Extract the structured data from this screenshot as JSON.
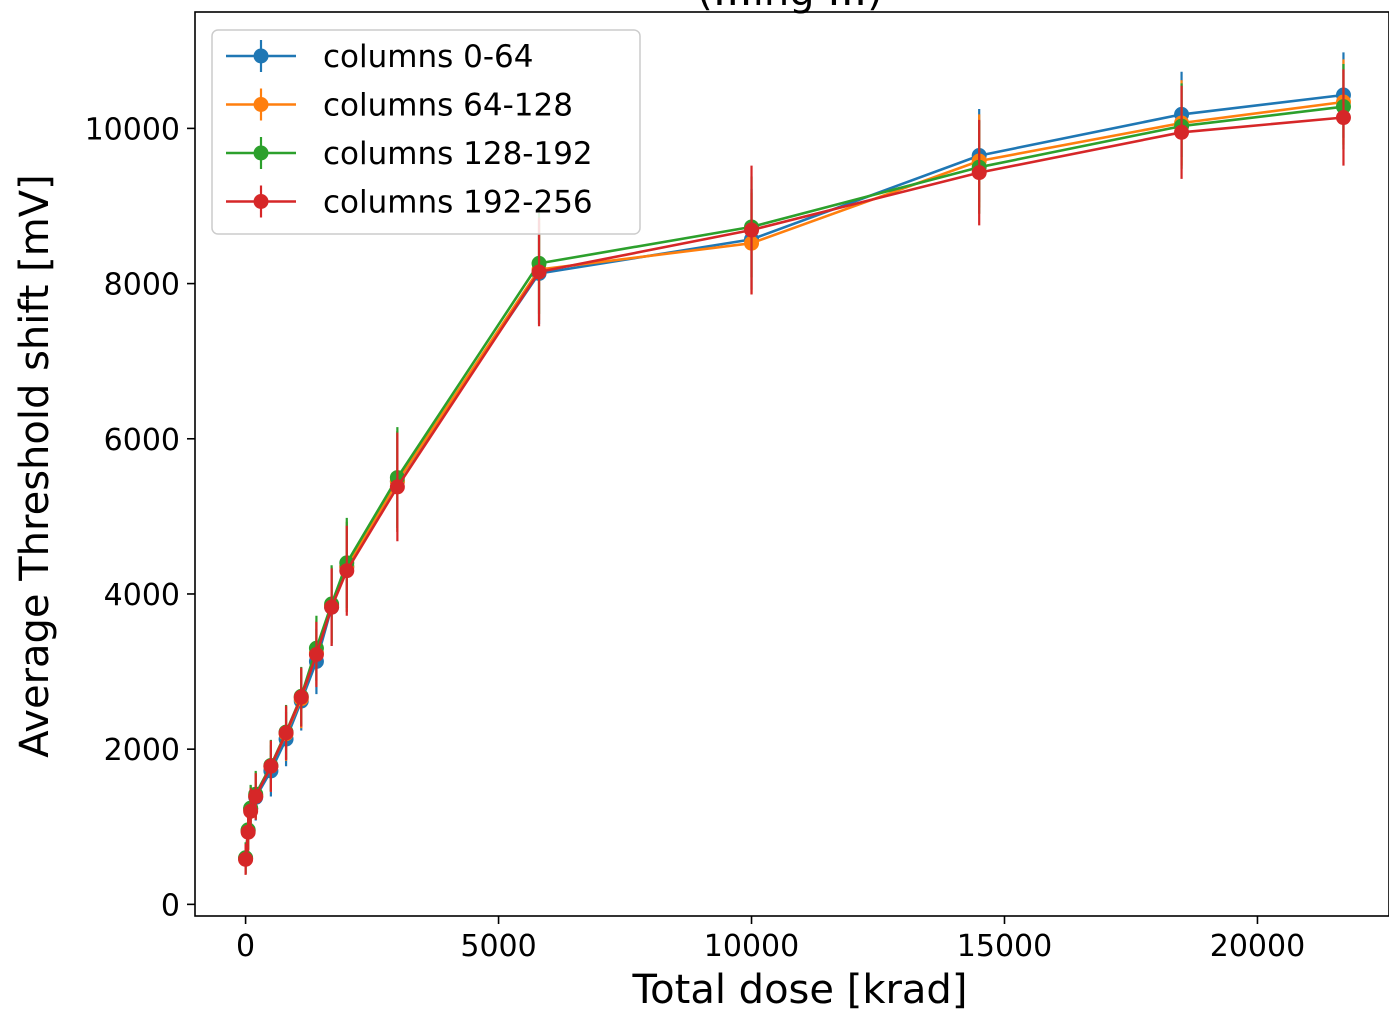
{
  "chart_data": {
    "type": "line",
    "title": "(…ing …)",
    "xlabel": "Total dose [krad]",
    "ylabel": "Average Threshold shift [mV]",
    "xlim": [
      -1000,
      22600
    ],
    "ylim": [
      -150,
      11500
    ],
    "xticks": [
      0,
      5000,
      10000,
      15000,
      20000
    ],
    "xtick_labels": [
      "0",
      "5000",
      "10000",
      "15000",
      "20000"
    ],
    "yticks": [
      0,
      2000,
      4000,
      6000,
      8000,
      10000
    ],
    "ytick_labels": [
      "0",
      "2000",
      "4000",
      "6000",
      "8000",
      "10000"
    ],
    "grid": false,
    "legend_position": "top-left",
    "error_bars": true,
    "x": [
      0,
      50,
      100,
      200,
      500,
      800,
      1100,
      1400,
      1700,
      2000,
      3000,
      5800,
      10000,
      14500,
      18500,
      21700
    ],
    "series": [
      {
        "name": "columns 0-64",
        "color": "#1f77b4",
        "values": [
          590,
          950,
          1230,
          1380,
          1720,
          2130,
          2620,
          3130,
          3830,
          4350,
          5450,
          8130,
          8570,
          9650,
          10180,
          10430
        ],
        "errors": [
          200,
          250,
          300,
          300,
          330,
          350,
          380,
          420,
          500,
          580,
          650,
          650,
          650,
          600,
          550,
          550
        ]
      },
      {
        "name": "columns 64-128",
        "color": "#ff7f0e",
        "values": [
          590,
          950,
          1230,
          1400,
          1780,
          2200,
          2650,
          3240,
          3850,
          4350,
          5450,
          8180,
          8520,
          9580,
          10070,
          10340
        ],
        "errors": [
          200,
          250,
          300,
          300,
          330,
          350,
          380,
          420,
          500,
          580,
          650,
          650,
          650,
          600,
          550,
          550
        ]
      },
      {
        "name": "columns 128-192",
        "color": "#2ca02c",
        "values": [
          600,
          960,
          1240,
          1420,
          1790,
          2220,
          2680,
          3300,
          3870,
          4400,
          5500,
          8260,
          8730,
          9500,
          10030,
          10280
        ],
        "errors": [
          200,
          250,
          300,
          300,
          330,
          350,
          380,
          420,
          500,
          580,
          650,
          650,
          650,
          600,
          550,
          550
        ]
      },
      {
        "name": "columns 192-256",
        "color": "#d62728",
        "values": [
          580,
          930,
          1200,
          1390,
          1780,
          2210,
          2670,
          3220,
          3830,
          4300,
          5380,
          8150,
          8690,
          9430,
          9950,
          10140
        ],
        "errors": [
          200,
          250,
          300,
          300,
          330,
          350,
          380,
          420,
          500,
          580,
          700,
          700,
          830,
          680,
          600,
          620
        ]
      }
    ]
  }
}
